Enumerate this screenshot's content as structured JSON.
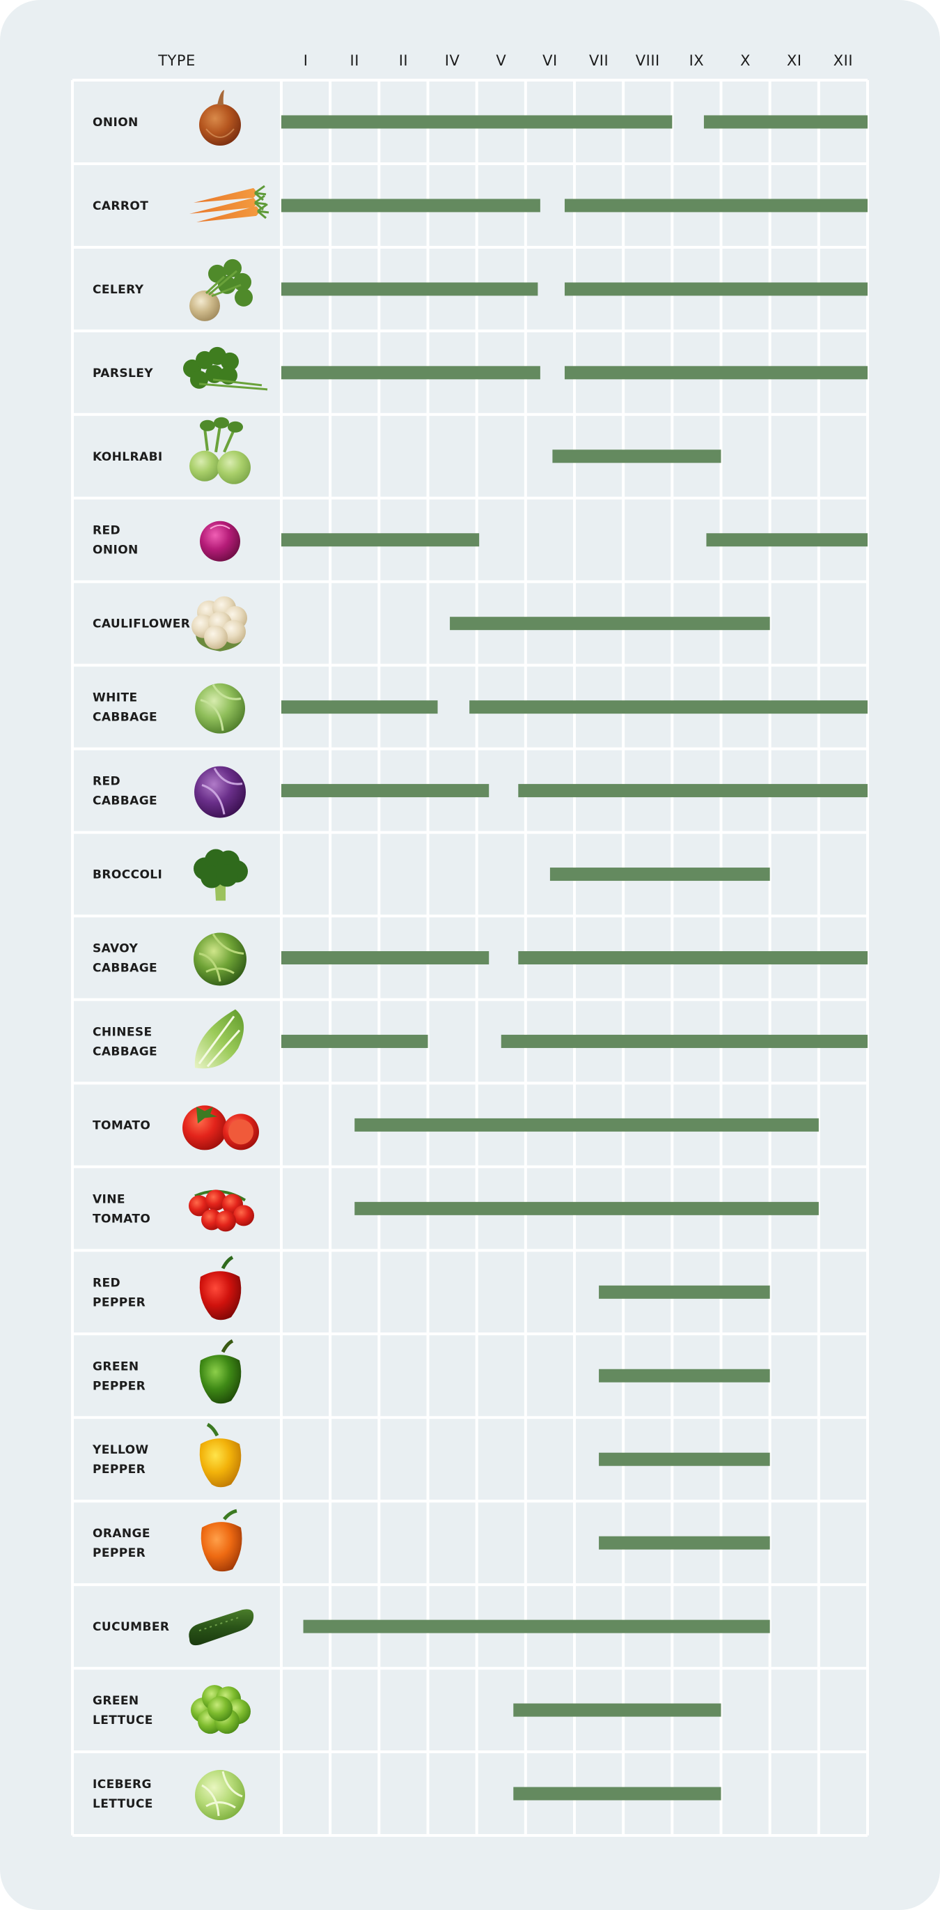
{
  "chart_data": {
    "type": "gantt",
    "type_column_header": "TYPE",
    "months": [
      "I",
      "II",
      "II",
      "IV",
      "V",
      "VI",
      "VII",
      "VIII",
      "IX",
      "X",
      "XI",
      "XII"
    ],
    "bar_color": "#648a5f",
    "grid_color": "#ffffff",
    "background_color": "#e9eff2",
    "rows": [
      {
        "name": [
          "ONION"
        ],
        "icon": "onion-icon",
        "ranges": [
          [
            0,
            8
          ],
          [
            8.65,
            12
          ]
        ]
      },
      {
        "name": [
          "CARROT"
        ],
        "icon": "carrot-icon",
        "ranges": [
          [
            0,
            5.3
          ],
          [
            5.8,
            12
          ]
        ]
      },
      {
        "name": [
          "CELERY"
        ],
        "icon": "celery-icon",
        "ranges": [
          [
            0,
            5.25
          ],
          [
            5.8,
            12
          ]
        ]
      },
      {
        "name": [
          "PARSLEY"
        ],
        "icon": "parsley-icon",
        "ranges": [
          [
            0,
            5.3
          ],
          [
            5.8,
            12
          ]
        ]
      },
      {
        "name": [
          "KOHLRABI"
        ],
        "icon": "kohlrabi-icon",
        "ranges": [
          [
            5.55,
            9
          ]
        ]
      },
      {
        "name": [
          "RED",
          "ONION"
        ],
        "icon": "red-onion-icon",
        "ranges": [
          [
            0,
            4.05
          ],
          [
            8.7,
            12
          ]
        ]
      },
      {
        "name": [
          "CAULIFLOWER"
        ],
        "icon": "cauliflower-icon",
        "ranges": [
          [
            3.45,
            10
          ]
        ]
      },
      {
        "name": [
          "WHITE",
          "CABBAGE"
        ],
        "icon": "white-cabbage-icon",
        "ranges": [
          [
            0,
            3.2
          ],
          [
            3.85,
            12
          ]
        ]
      },
      {
        "name": [
          "RED",
          "CABBAGE"
        ],
        "icon": "red-cabbage-icon",
        "ranges": [
          [
            0,
            4.25
          ],
          [
            4.85,
            12
          ]
        ]
      },
      {
        "name": [
          "BROCCOLI"
        ],
        "icon": "broccoli-icon",
        "ranges": [
          [
            5.5,
            10
          ]
        ]
      },
      {
        "name": [
          "SAVOY",
          "CABBAGE"
        ],
        "icon": "savoy-cabbage-icon",
        "ranges": [
          [
            0,
            4.25
          ],
          [
            4.85,
            12
          ]
        ]
      },
      {
        "name": [
          "CHINESE",
          "CABBAGE"
        ],
        "icon": "chinese-cabbage-icon",
        "ranges": [
          [
            0,
            3
          ],
          [
            4.5,
            12
          ]
        ]
      },
      {
        "name": [
          "TOMATO"
        ],
        "icon": "tomato-icon",
        "ranges": [
          [
            1.5,
            11
          ]
        ]
      },
      {
        "name": [
          "VINE",
          "TOMATO"
        ],
        "icon": "vine-tomato-icon",
        "ranges": [
          [
            1.5,
            11
          ]
        ]
      },
      {
        "name": [
          "RED",
          "PEPPER"
        ],
        "icon": "red-pepper-icon",
        "ranges": [
          [
            6.5,
            10
          ]
        ]
      },
      {
        "name": [
          "GREEN",
          "PEPPER"
        ],
        "icon": "green-pepper-icon",
        "ranges": [
          [
            6.5,
            10
          ]
        ]
      },
      {
        "name": [
          "YELLOW",
          "PEPPER"
        ],
        "icon": "yellow-pepper-icon",
        "ranges": [
          [
            6.5,
            10
          ]
        ]
      },
      {
        "name": [
          "ORANGE",
          "PEPPER"
        ],
        "icon": "orange-pepper-icon",
        "ranges": [
          [
            6.5,
            10
          ]
        ]
      },
      {
        "name": [
          "CUCUMBER"
        ],
        "icon": "cucumber-icon",
        "ranges": [
          [
            0.45,
            10
          ]
        ]
      },
      {
        "name": [
          "GREEN",
          "LETTUCE"
        ],
        "icon": "green-lettuce-icon",
        "ranges": [
          [
            4.75,
            9
          ]
        ]
      },
      {
        "name": [
          "ICEBERG",
          "LETTUCE"
        ],
        "icon": "iceberg-lettuce-icon",
        "ranges": [
          [
            4.75,
            9
          ]
        ]
      }
    ]
  }
}
